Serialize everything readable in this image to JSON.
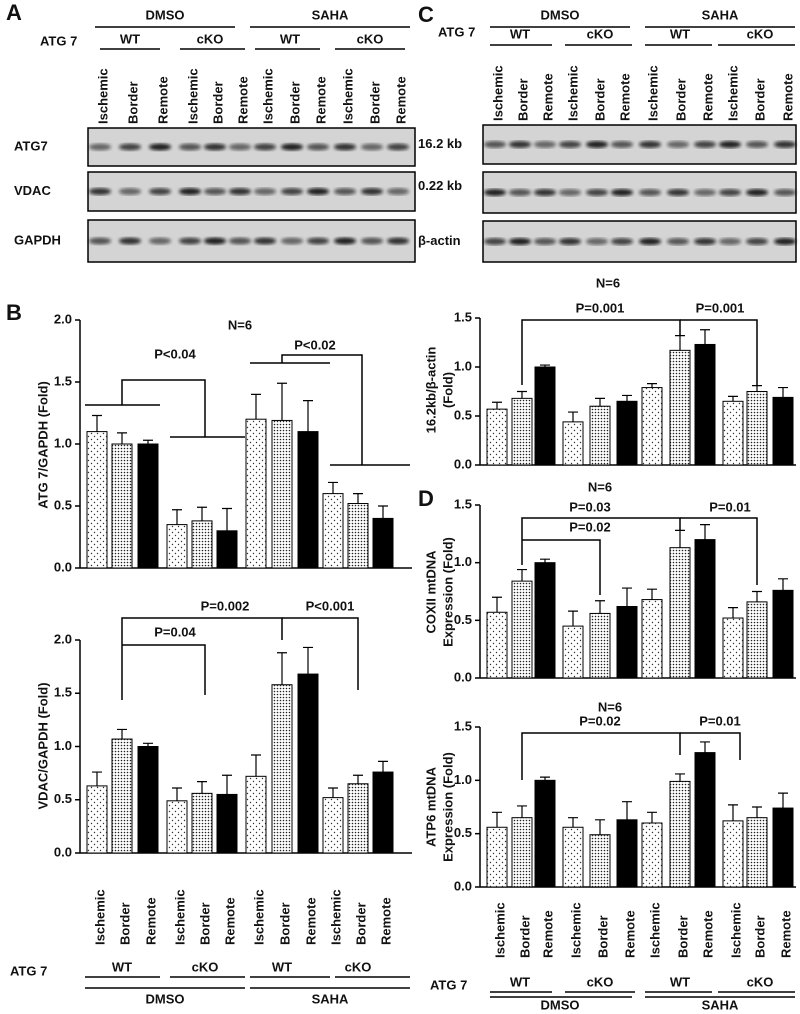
{
  "panels": [
    "A",
    "B",
    "C",
    "D"
  ],
  "blots": [
    {
      "atg_label": "ATG 7",
      "groups": [
        "DMSO",
        "SAHA"
      ],
      "genotypes": [
        "WT",
        "cKO",
        "WT",
        "cKO"
      ],
      "lanes": [
        "Ischemic",
        "Border",
        "Remote",
        "Ischemic",
        "Border",
        "Remote",
        "Ischemic",
        "Border",
        "Remote",
        "Ischemic",
        "Border",
        "Remote"
      ],
      "rows": [
        "ATG7",
        "VDAC",
        "GAPDH"
      ]
    },
    {
      "atg_label": "ATG 7",
      "groups": [
        "DMSO",
        "SAHA"
      ],
      "genotypes": [
        "WT",
        "cKO",
        "WT",
        "cKO"
      ],
      "lanes": [
        "Ischemic",
        "Border",
        "Remote",
        "Ischemic",
        "Border",
        "Remote",
        "Ischemic",
        "Border",
        "Remote",
        "Ischemic",
        "Border",
        "Remote"
      ],
      "rows": [
        "16.2 kb",
        "0.22 kb",
        "β-actin"
      ]
    }
  ],
  "chart_data": [
    {
      "type": "bar",
      "ylabel": [
        "ATG 7/GAPDH (Fold)"
      ],
      "ylim": [
        0,
        2
      ],
      "yticks": [
        {
          "value": 0,
          "label": "0.0"
        },
        0.5,
        {
          "value": 1,
          "label": "1.0"
        },
        1.5,
        {
          "value": 2,
          "label": "2.0"
        }
      ],
      "values": [
        1.1,
        1.0,
        1.0,
        0.35,
        0.38,
        0.3,
        1.2,
        1.19,
        1.1,
        0.6,
        0.52,
        0.4
      ],
      "errors": [
        0.13,
        0.09,
        0.03,
        0.12,
        0.11,
        0.18,
        0.2,
        0.3,
        0.25,
        0.09,
        0.08,
        0.1
      ],
      "annotations": [
        "N=6",
        "P<0.04",
        "P<0.02"
      ]
    },
    {
      "type": "bar",
      "ylabel": [
        "VDAC/GAPDH (Fold)"
      ],
      "ylim": [
        0,
        2
      ],
      "yticks": [
        {
          "value": 0,
          "label": "0.0"
        },
        0.5,
        {
          "value": 1,
          "label": "1.0"
        },
        1.5,
        {
          "value": 2,
          "label": "2.0"
        }
      ],
      "values": [
        0.63,
        1.07,
        1.0,
        0.49,
        0.56,
        0.55,
        0.72,
        1.58,
        1.68,
        0.52,
        0.65,
        0.76
      ],
      "errors": [
        0.13,
        0.09,
        0.03,
        0.12,
        0.11,
        0.18,
        0.2,
        0.3,
        0.25,
        0.09,
        0.08,
        0.1
      ],
      "annotations": [
        "P=0.002",
        "P<0.001",
        "P=0.04"
      ],
      "categories": [
        "Ischemic",
        "Border",
        "Remote",
        "Ischemic",
        "Border",
        "Remote",
        "Ischemic",
        "Border",
        "Remote",
        "Ischemic",
        "Border",
        "Remote"
      ],
      "atg_label": "ATG 7",
      "genotypes": [
        "WT",
        "cKO",
        "WT",
        "cKO"
      ],
      "groups": [
        "DMSO",
        "SAHA"
      ]
    },
    {
      "type": "bar",
      "ylabel": [
        "16.2kb/β-actin",
        "(Fold)"
      ],
      "ylim": [
        0,
        1.5
      ],
      "yticks": [
        {
          "value": 0,
          "label": "0.0"
        },
        0.5,
        {
          "value": 1,
          "label": "1.0"
        },
        1.5
      ],
      "values": [
        0.57,
        0.68,
        1.0,
        0.44,
        0.6,
        0.65,
        0.79,
        1.17,
        1.23,
        0.65,
        0.75,
        0.69
      ],
      "errors": [
        0.07,
        0.07,
        0.02,
        0.1,
        0.08,
        0.06,
        0.04,
        0.15,
        0.15,
        0.05,
        0.06,
        0.1
      ],
      "annotations": [
        "N=6",
        "P=0.001",
        "P=0.001"
      ]
    },
    {
      "type": "bar",
      "ylabel": [
        "COXII mtDNA",
        "Expression (Fold)"
      ],
      "ylim": [
        0,
        1.5
      ],
      "yticks": [
        {
          "value": 0,
          "label": "0.0"
        },
        0.5,
        {
          "value": 1,
          "label": "1.0"
        },
        1.5
      ],
      "values": [
        0.57,
        0.84,
        1.0,
        0.45,
        0.56,
        0.62,
        0.68,
        1.13,
        1.2,
        0.52,
        0.66,
        0.76
      ],
      "errors": [
        0.13,
        0.1,
        0.03,
        0.13,
        0.11,
        0.16,
        0.09,
        0.15,
        0.13,
        0.09,
        0.09,
        0.1
      ],
      "annotations": [
        "N=6",
        "P=0.03",
        "P=0.02",
        "P=0.01"
      ]
    },
    {
      "type": "bar",
      "ylabel": [
        "ATP6 mtDNA",
        "Expression (Fold)"
      ],
      "ylim": [
        0,
        1.5
      ],
      "yticks": [
        {
          "value": 0,
          "label": "0.0"
        },
        0.5,
        {
          "value": 1,
          "label": "1.0"
        },
        1.5
      ],
      "values": [
        0.56,
        0.65,
        1.0,
        0.56,
        0.49,
        0.63,
        0.6,
        0.99,
        1.26,
        0.62,
        0.65,
        0.74
      ],
      "errors": [
        0.14,
        0.11,
        0.03,
        0.09,
        0.14,
        0.17,
        0.1,
        0.07,
        0.1,
        0.15,
        0.1,
        0.14
      ],
      "annotations": [
        "N=6",
        "P=0.02",
        "P=0.01"
      ],
      "categories": [
        "Ischemic",
        "Border",
        "Remote",
        "Ischemic",
        "Border",
        "Remote",
        "Ischemic",
        "Border",
        "Remote",
        "Ischemic",
        "Border",
        "Remote"
      ],
      "atg_label": "ATG 7",
      "genotypes": [
        "WT",
        "cKO",
        "WT",
        "cKO"
      ],
      "groups": [
        "DMSO",
        "SAHA"
      ]
    }
  ]
}
